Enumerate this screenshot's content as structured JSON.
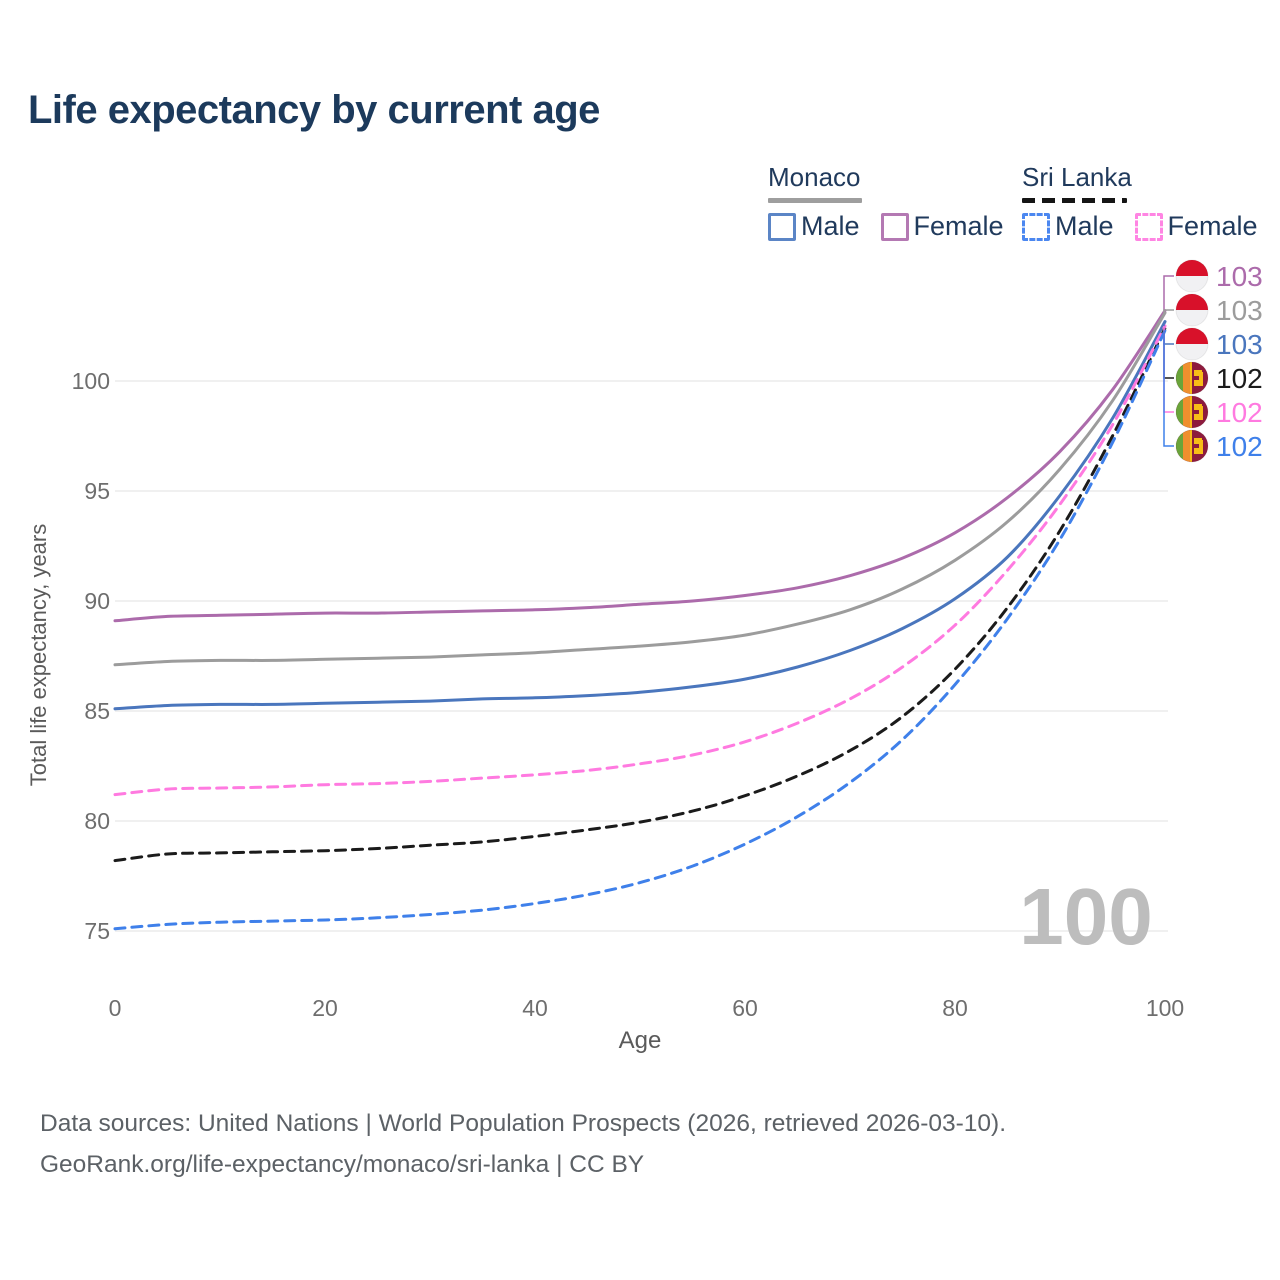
{
  "title": "Life expectancy by current age",
  "watermark": "100",
  "legend": {
    "groups": [
      {
        "label": "Monaco",
        "style": "solid",
        "underline_color": "#9e9e9e",
        "items": [
          {
            "label": "Male",
            "color": "#5b85c6",
            "dashed": false
          },
          {
            "label": "Female",
            "color": "#b479b3",
            "dashed": false
          }
        ]
      },
      {
        "label": "Sri Lanka",
        "style": "dashed",
        "underline_color": "#151515",
        "items": [
          {
            "label": "Male",
            "color": "#4b87f0",
            "dashed": true
          },
          {
            "label": "Female",
            "color": "#ff85e3",
            "dashed": true
          }
        ]
      }
    ]
  },
  "footer": {
    "line1": "Data sources: United Nations | World Population Prospects (2026, retrieved 2026-03-10).",
    "line2": "GeoRank.org/life-expectancy/monaco/sri-lanka | CC BY"
  },
  "chart_data": {
    "type": "line",
    "title": "Life expectancy by current age",
    "xlabel": "Age",
    "ylabel": "Total life expectancy, years",
    "xlim": [
      0,
      100
    ],
    "ylim": [
      73.5,
      104.5
    ],
    "xticks": [
      0,
      20,
      40,
      60,
      80,
      100
    ],
    "yticks": [
      75,
      80,
      85,
      90,
      95,
      100
    ],
    "grid": "horizontal",
    "grid_color": "#ebebeb",
    "tick_color": "#6e6e6e",
    "axis_label_color": "#5a5a5a",
    "watermark_color": "#bdbdbd",
    "legend_position": "top-right",
    "ages": [
      0,
      5,
      10,
      15,
      20,
      25,
      30,
      35,
      40,
      45,
      50,
      55,
      60,
      65,
      70,
      75,
      80,
      85,
      90,
      95,
      100
    ],
    "series": [
      {
        "name": "Monaco Female",
        "country": "Monaco",
        "sex": "Female",
        "color": "#ac6bab",
        "dashed": false,
        "flag": "monaco",
        "end_label": "103",
        "label_color": "#ac6bab",
        "values": [
          89.1,
          89.3,
          89.35,
          89.4,
          89.45,
          89.45,
          89.5,
          89.55,
          89.6,
          89.7,
          89.85,
          90.0,
          90.25,
          90.6,
          91.15,
          91.95,
          93.1,
          94.7,
          96.8,
          99.6,
          103.2
        ]
      },
      {
        "name": "Monaco Both sexes",
        "country": "Monaco",
        "sex": "Both",
        "color": "#9c9c9c",
        "dashed": false,
        "flag": "monaco",
        "end_label": "103",
        "label_color": "#9c9c9c",
        "values": [
          87.1,
          87.25,
          87.3,
          87.3,
          87.35,
          87.4,
          87.45,
          87.55,
          87.65,
          87.8,
          87.95,
          88.15,
          88.45,
          88.95,
          89.6,
          90.55,
          91.85,
          93.6,
          96.0,
          99.1,
          103.1
        ]
      },
      {
        "name": "Monaco Male",
        "country": "Monaco",
        "sex": "Male",
        "color": "#4a76bd",
        "dashed": false,
        "flag": "monaco",
        "end_label": "103",
        "label_color": "#4a76bd",
        "values": [
          85.1,
          85.25,
          85.3,
          85.3,
          85.35,
          85.4,
          85.45,
          85.55,
          85.6,
          85.7,
          85.85,
          86.1,
          86.45,
          87.0,
          87.75,
          88.75,
          90.1,
          92.0,
          94.8,
          98.3,
          102.7
        ]
      },
      {
        "name": "Sri Lanka Both sexes",
        "country": "Sri Lanka",
        "sex": "Both",
        "color": "#1b1b1b",
        "dashed": true,
        "flag": "srilanka",
        "end_label": "102",
        "label_color": "#1b1b1b",
        "values": [
          78.2,
          78.5,
          78.55,
          78.6,
          78.65,
          78.75,
          78.9,
          79.05,
          79.3,
          79.6,
          79.95,
          80.45,
          81.15,
          82.05,
          83.2,
          84.75,
          86.9,
          89.7,
          93.2,
          97.5,
          102.4
        ]
      },
      {
        "name": "Sri Lanka Female",
        "country": "Sri Lanka",
        "sex": "Female",
        "color": "#ff7ae0",
        "dashed": true,
        "flag": "srilanka",
        "end_label": "102",
        "label_color": "#ff7ae0",
        "values": [
          81.2,
          81.45,
          81.5,
          81.55,
          81.65,
          81.7,
          81.8,
          81.95,
          82.1,
          82.3,
          82.6,
          83.0,
          83.6,
          84.45,
          85.55,
          87.0,
          88.9,
          91.4,
          94.4,
          98.0,
          102.5
        ]
      },
      {
        "name": "Sri Lanka Male",
        "country": "Sri Lanka",
        "sex": "Male",
        "color": "#3f80ea",
        "dashed": true,
        "flag": "srilanka",
        "end_label": "102",
        "label_color": "#3f80ea",
        "values": [
          75.1,
          75.3,
          75.4,
          75.45,
          75.5,
          75.6,
          75.75,
          75.95,
          76.25,
          76.65,
          77.2,
          77.95,
          78.95,
          80.2,
          81.75,
          83.7,
          86.2,
          89.2,
          92.8,
          97.2,
          102.3
        ]
      }
    ]
  }
}
